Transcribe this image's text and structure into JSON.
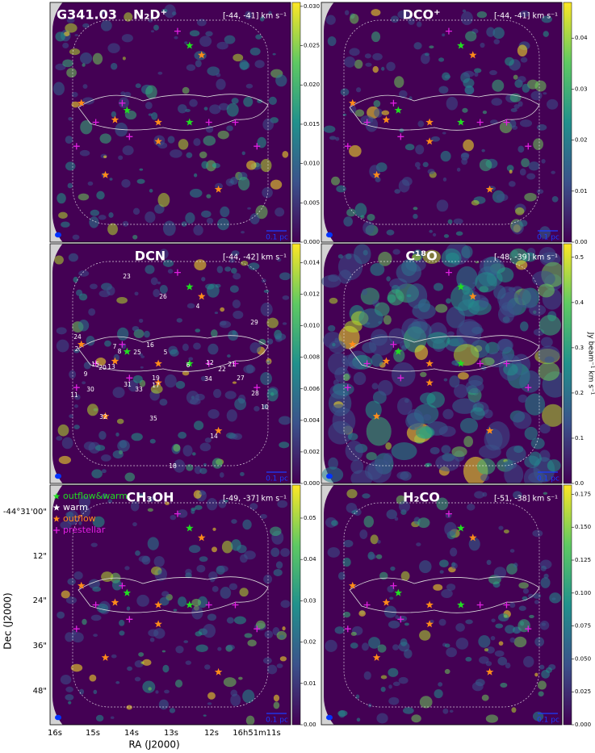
{
  "chart_data": [
    {
      "type": "map",
      "label": "G341.03",
      "title": "N₂D⁺",
      "subtitle": "[-44, -41] km s⁻¹",
      "scalebar": "0.1 pc",
      "clim": [
        0,
        0.0305
      ],
      "cticks": [
        {
          "value": 0,
          "label": "0.000"
        },
        {
          "value": 0.005,
          "label": "0.005"
        },
        {
          "value": 0.01,
          "label": "0.010"
        },
        {
          "value": 0.015,
          "label": "0.015"
        },
        {
          "value": 0.02,
          "label": "0.020"
        },
        {
          "value": 0.025,
          "label": "0.025"
        },
        {
          "value": 0.03,
          "label": "0.030"
        }
      ]
    },
    {
      "type": "map",
      "title": "DCO⁺",
      "subtitle": "[-44, -41] km s⁻¹",
      "scalebar": "0.1 pc",
      "clim": [
        0,
        0.047
      ],
      "cticks": [
        {
          "value": 0,
          "label": "0.00"
        },
        {
          "value": 0.01,
          "label": "0.01"
        },
        {
          "value": 0.02,
          "label": "0.02"
        },
        {
          "value": 0.03,
          "label": "0.03"
        },
        {
          "value": 0.04,
          "label": "0.04"
        }
      ]
    },
    {
      "type": "map",
      "title": "DCN",
      "subtitle": "[-44, -42] km s⁻¹",
      "scalebar": "0.1 pc",
      "clim": [
        0,
        0.0152
      ],
      "cticks": [
        {
          "value": 0,
          "label": "0.000"
        },
        {
          "value": 0.002,
          "label": "0.002"
        },
        {
          "value": 0.004,
          "label": "0.004"
        },
        {
          "value": 0.006,
          "label": "0.006"
        },
        {
          "value": 0.008,
          "label": "0.008"
        },
        {
          "value": 0.01,
          "label": "0.010"
        },
        {
          "value": 0.012,
          "label": "0.012"
        },
        {
          "value": 0.014,
          "label": "0.014"
        }
      ],
      "annotations": [
        "23",
        "26",
        "4",
        "29",
        "24",
        "2",
        "7",
        "8",
        "25",
        "16",
        "5",
        "15",
        "20",
        "13",
        "9",
        "6",
        "12",
        "22",
        "21",
        "19",
        "31",
        "17",
        "33",
        "34",
        "27",
        "11",
        "30",
        "28",
        "10",
        "32",
        "35",
        "14",
        "18"
      ]
    },
    {
      "type": "map",
      "title": "C¹⁸O",
      "subtitle": "[-48, -39] km s⁻¹",
      "scalebar": "0.1 pc",
      "clim": [
        0,
        0.53
      ],
      "cticks": [
        {
          "value": 0,
          "label": "0.0"
        },
        {
          "value": 0.1,
          "label": "0.1"
        },
        {
          "value": 0.2,
          "label": "0.2"
        },
        {
          "value": 0.3,
          "label": "0.3"
        },
        {
          "value": 0.4,
          "label": "0.4"
        },
        {
          "value": 0.5,
          "label": "0.5"
        }
      ],
      "clabel": "Jy beam⁻¹ km s⁻¹"
    },
    {
      "type": "map",
      "title": "CH₃OH",
      "subtitle": "[-49, -37] km s⁻¹",
      "scalebar": "0.1 pc",
      "clim": [
        0,
        0.058
      ],
      "cticks": [
        {
          "value": 0,
          "label": "0.00"
        },
        {
          "value": 0.01,
          "label": "0.01"
        },
        {
          "value": 0.02,
          "label": "0.02"
        },
        {
          "value": 0.03,
          "label": "0.03"
        },
        {
          "value": 0.04,
          "label": "0.04"
        },
        {
          "value": 0.05,
          "label": "0.05"
        }
      ],
      "legend": [
        {
          "name": "outflow&warm",
          "color": "#22dd22"
        },
        {
          "name": "warm",
          "color": "#ffffff"
        },
        {
          "name": "outflow",
          "color": "#ff8c1a"
        },
        {
          "name": "prestellar",
          "color": "#e020e0"
        }
      ],
      "xlabel": "RA (J2000)",
      "ylabel": "Dec (J2000)",
      "xticks": [
        "16s",
        "15s",
        "14s",
        "13s",
        "12s",
        "16h51m11s"
      ],
      "yticks": [
        "-44°31'00\"",
        "12\"",
        "24\"",
        "36\"",
        "48\""
      ]
    },
    {
      "type": "map",
      "title": "H₂CO",
      "subtitle": "[-51, -38] km s⁻¹",
      "scalebar": "0.1 pc",
      "clim": [
        0,
        0.182
      ],
      "cticks": [
        {
          "value": 0,
          "label": "0.000"
        },
        {
          "value": 0.025,
          "label": "0.025"
        },
        {
          "value": 0.05,
          "label": "0.050"
        },
        {
          "value": 0.075,
          "label": "0.075"
        },
        {
          "value": 0.1,
          "label": "0.100"
        },
        {
          "value": 0.125,
          "label": "0.125"
        },
        {
          "value": 0.15,
          "label": "0.150"
        },
        {
          "value": 0.175,
          "label": "0.175"
        }
      ]
    }
  ]
}
